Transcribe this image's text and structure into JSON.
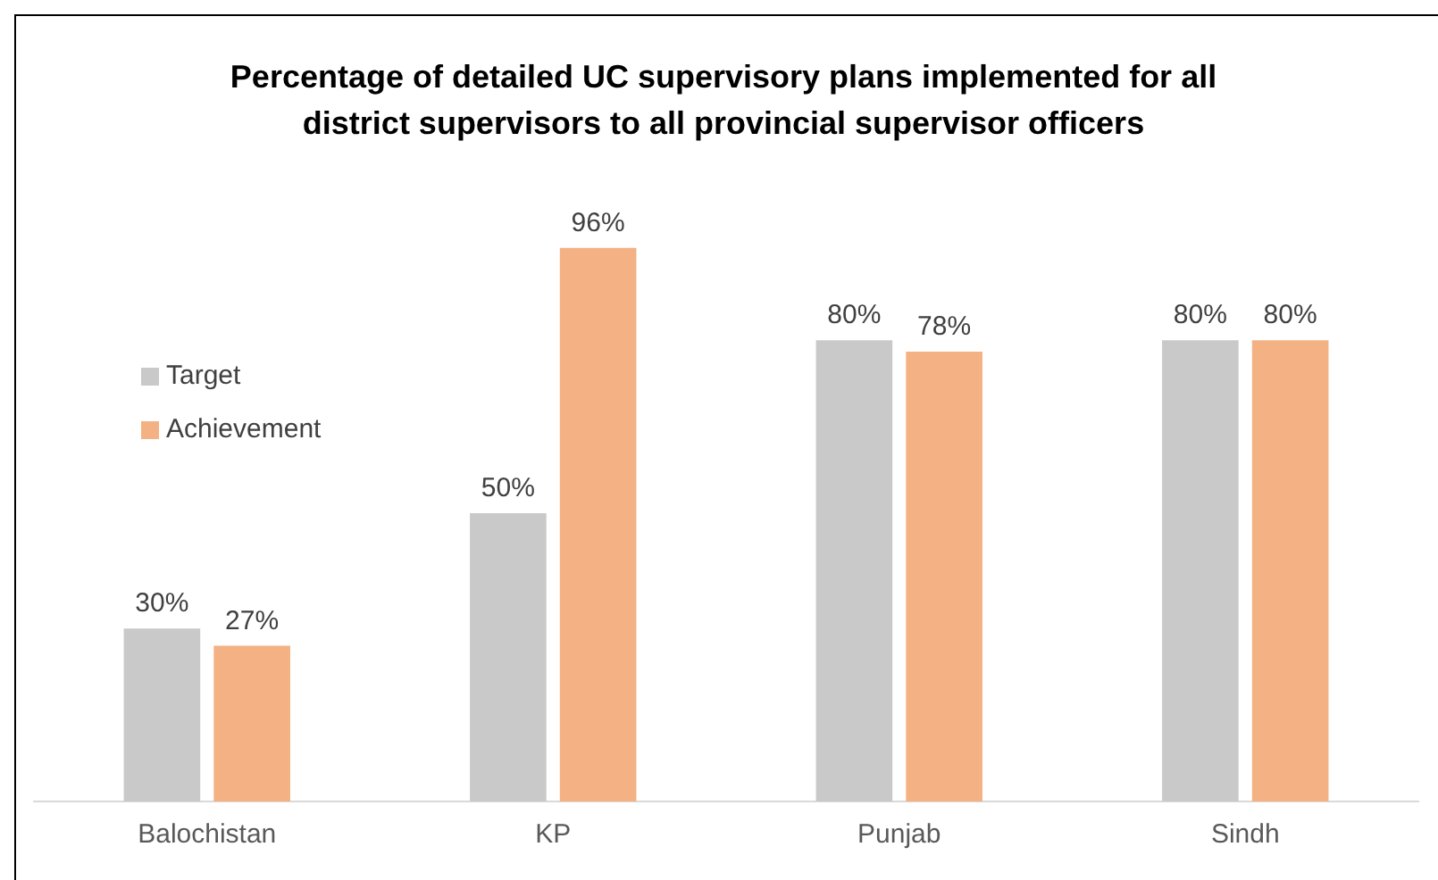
{
  "chart_data": {
    "type": "bar",
    "title": "Percentage of detailed UC supervisory plans implemented for all district supervisors to all provincial supervisor officers",
    "categories": [
      "Balochistan",
      "KP",
      "Punjab",
      "Sindh"
    ],
    "series": [
      {
        "name": "Target",
        "color": "#c9c9c9",
        "values": [
          30,
          50,
          80,
          80
        ],
        "value_labels": [
          "30%",
          "50%",
          "80%",
          "80%"
        ]
      },
      {
        "name": "Achievement",
        "color": "#f4b183",
        "values": [
          27,
          96,
          78,
          80
        ],
        "value_labels": [
          "27%",
          "96%",
          "78%",
          "80%"
        ]
      }
    ],
    "legend": "top left",
    "grid": false
  }
}
